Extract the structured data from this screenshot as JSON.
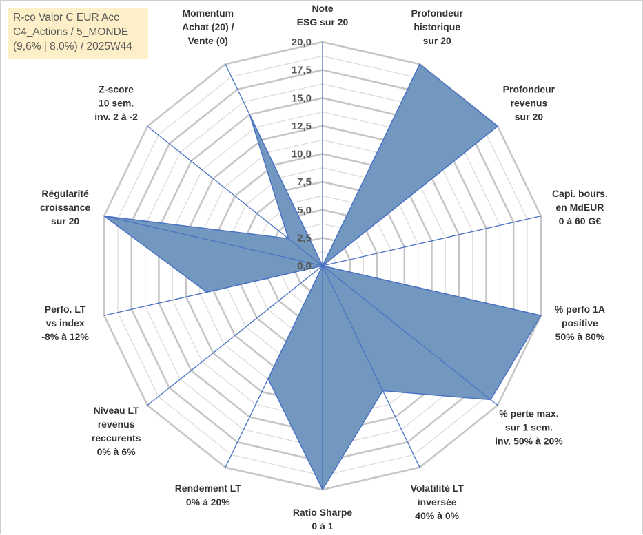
{
  "title_box": {
    "line1": "R-co Valor C EUR Acc",
    "line2": "C4_Actions / 5_MONDE",
    "line3": "(9,6% | 8,0%) / 2025W44"
  },
  "colors": {
    "fill": "#7398bf",
    "stroke": "#4a72c4",
    "grid_major": "#c6c6c6",
    "grid_minor": "#d9d9d9",
    "spoke": "#4a72c4",
    "title_bg": "#fdf0c8"
  },
  "chart_data": {
    "type": "radar",
    "rmin": 0,
    "rmax": 20,
    "major_step": 2.5,
    "tick_labels": [
      "0,0",
      "2,5",
      "5,0",
      "7,5",
      "10,0",
      "12,5",
      "15,0",
      "17,5",
      "20,0"
    ],
    "axes": [
      {
        "label": [
          "Note",
          "ESG sur 20"
        ],
        "value": 0
      },
      {
        "label": [
          "Profondeur",
          "historique",
          "sur 20"
        ],
        "value": 20
      },
      {
        "label": [
          "Profondeur",
          "revenus",
          "sur 20"
        ],
        "value": 20
      },
      {
        "label": [
          "Capi. bours.",
          "en MdEUR",
          "0 à 60 G€"
        ],
        "value": 0
      },
      {
        "label": [
          "% perfo 1A",
          "positive",
          "50% à 80%"
        ],
        "value": 20
      },
      {
        "label": [
          "% perte max.",
          "sur 1 sem.",
          "inv. 50% à 20%"
        ],
        "value": 19.2
      },
      {
        "label": [
          "Volatilité LT",
          "inversée",
          "40% à 0%"
        ],
        "value": 12.4
      },
      {
        "label": [
          "Ratio Sharpe",
          "0 à 1"
        ],
        "value": 20
      },
      {
        "label": [
          "Rendement LT",
          "0% à 20%"
        ],
        "value": 11.2
      },
      {
        "label": [
          "Niveau LT",
          "revenus",
          "reccurents",
          "0% à 6%"
        ],
        "value": 0
      },
      {
        "label": [
          "Perfo. LT",
          "vs index",
          "-8% à 12%"
        ],
        "value": 10.6
      },
      {
        "label": [
          "Régularité",
          "croissance",
          "sur 20"
        ],
        "value": 20
      },
      {
        "label": [
          "Z-score",
          "10 sem.",
          "inv. 2 à -2"
        ],
        "value": 3.9
      },
      {
        "label": [
          "Momentum",
          "Achat (20) /",
          "Vente (0)"
        ],
        "value": 15
      }
    ]
  }
}
